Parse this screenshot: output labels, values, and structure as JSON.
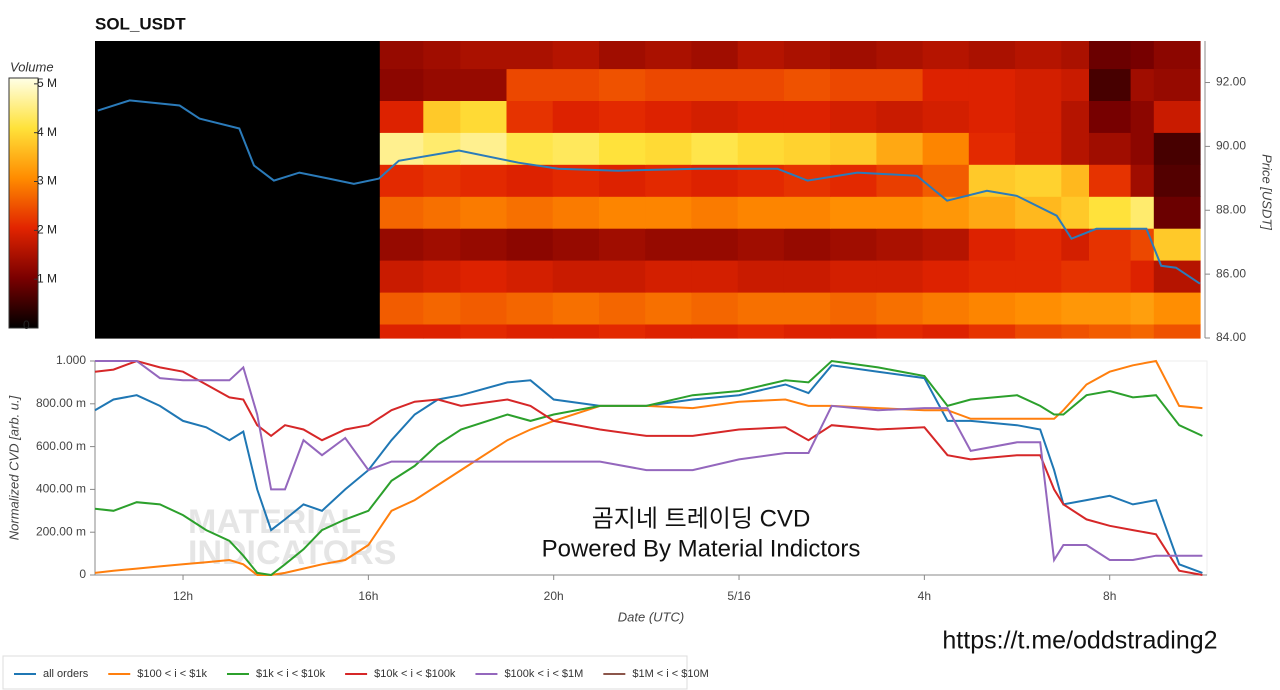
{
  "title": "SOL_USDT",
  "url": "https://t.me/oddstrading2",
  "chart_data": [
    {
      "type": "heatmap",
      "colorbar_label": "Volume",
      "y_label": "Price [USDT]",
      "x_bins": [
        10.1,
        16.26,
        17.2,
        18.0,
        19.0,
        20.0,
        21.0,
        22.0,
        23.0,
        24.0,
        25.0,
        26.0,
        27.0,
        28.0,
        29.0,
        30.0,
        31.0,
        31.6,
        32.5,
        33.0,
        34.0
      ],
      "y_bins": [
        84,
        84.44,
        85.44,
        86.44,
        87.44,
        88.44,
        89.44,
        90.44,
        91.44,
        92.44,
        93.3
      ],
      "z": [
        [
          0,
          2000000.0,
          2000000.0,
          2100000.0,
          2000000.0,
          2000000.0,
          2100000.0,
          2000000.0,
          2000000.0,
          2100000.0,
          2000000.0,
          2000000.0,
          2100000.0,
          2000000.0,
          2200000.0,
          2400000.0,
          2500000.0,
          2600000.0,
          2700000.0,
          2500000.0
        ],
        [
          0,
          2600000.0,
          2700000.0,
          2600000.0,
          2700000.0,
          2800000.0,
          2700000.0,
          2800000.0,
          2700000.0,
          2800000.0,
          2800000.0,
          2700000.0,
          2800000.0,
          2900000.0,
          3000000.0,
          3100000.0,
          3200000.0,
          3200000.0,
          3300000.0,
          3100000.0
        ],
        [
          0,
          1800000.0,
          1900000.0,
          2000000.0,
          1900000.0,
          1800000.0,
          1800000.0,
          1900000.0,
          1900000.0,
          1800000.0,
          1800000.0,
          1900000.0,
          1900000.0,
          2000000.0,
          2100000.0,
          2100000.0,
          2200000.0,
          2200000.0,
          2000000.0,
          1600000.0
        ],
        [
          0,
          1300000.0,
          1400000.0,
          1300000.0,
          1200000.0,
          1300000.0,
          1400000.0,
          1300000.0,
          1300000.0,
          1400000.0,
          1300000.0,
          1400000.0,
          1500000.0,
          1600000.0,
          2000000.0,
          2100000.0,
          1900000.0,
          2200000.0,
          2400000.0,
          3800000.0
        ],
        [
          0,
          2700000.0,
          2800000.0,
          2900000.0,
          2800000.0,
          2900000.0,
          3000000.0,
          3000000.0,
          2900000.0,
          3000000.0,
          3000000.0,
          3100000.0,
          3100000.0,
          3200000.0,
          3400000.0,
          3600000.0,
          3800000.0,
          4100000.0,
          4400000.0,
          900000.0
        ],
        [
          0,
          2100000.0,
          2200000.0,
          2100000.0,
          2000000.0,
          2100000.0,
          2000000.0,
          2100000.0,
          2000000.0,
          2100000.0,
          2200000.0,
          2100000.0,
          2300000.0,
          2600000.0,
          3800000.0,
          3900000.0,
          3600000.0,
          2200000.0,
          1400000.0,
          700000.0
        ],
        [
          0,
          4600000.0,
          4400000.0,
          4600000.0,
          4200000.0,
          4300000.0,
          4100000.0,
          4000000.0,
          4200000.0,
          4000000.0,
          3900000.0,
          3800000.0,
          3400000.0,
          3000000.0,
          2100000.0,
          1900000.0,
          1600000.0,
          1400000.0,
          1200000.0,
          600000.0
        ],
        [
          0,
          2000000.0,
          3800000.0,
          4000000.0,
          2200000.0,
          2000000.0,
          2100000.0,
          2000000.0,
          1900000.0,
          2000000.0,
          2000000.0,
          1900000.0,
          1800000.0,
          1900000.0,
          2000000.0,
          1900000.0,
          1600000.0,
          1000000.0,
          1200000.0,
          1800000.0
        ],
        [
          0,
          1200000.0,
          1300000.0,
          1300000.0,
          2400000.0,
          2400000.0,
          2500000.0,
          2400000.0,
          2400000.0,
          2400000.0,
          2500000.0,
          2400000.0,
          2400000.0,
          2000000.0,
          2000000.0,
          1900000.0,
          1800000.0,
          600000.0,
          1400000.0,
          1300000.0
        ],
        [
          0,
          1300000.0,
          1400000.0,
          1500000.0,
          1500000.0,
          1600000.0,
          1400000.0,
          1500000.0,
          1400000.0,
          1600000.0,
          1500000.0,
          1400000.0,
          1500000.0,
          1600000.0,
          1500000.0,
          1600000.0,
          1500000.0,
          900000.0,
          1000000.0,
          1200000.0
        ]
      ],
      "zlim": [
        0,
        5120000
      ],
      "zticks": [
        0,
        {
          "value": 1000000,
          "label": "1 M"
        },
        {
          "value": 2000000,
          "label": "2 M"
        },
        {
          "value": 3000000,
          "label": "3 M"
        },
        {
          "value": 4000000,
          "label": "4 M"
        },
        {
          "value": 5000000,
          "label": "5 M"
        }
      ],
      "colorscale": [
        "#000000",
        "#7a0000",
        "#e22400",
        "#ff8c00",
        "#ffe23a",
        "#ffffe6"
      ],
      "xlim": [
        10.1,
        34.0
      ],
      "ylim": [
        84,
        93.3
      ],
      "yticks": [
        {
          "value": 84,
          "label": "84.00"
        },
        {
          "value": 86,
          "label": "86.00"
        },
        {
          "value": 88,
          "label": "88.00"
        },
        {
          "value": 90,
          "label": "90.00"
        },
        {
          "value": 92,
          "label": "92.00"
        }
      ],
      "line": {
        "color": "#2b7bba",
        "x": [
          10.16,
          10.85,
          11.93,
          12.36,
          13.22,
          13.54,
          13.97,
          14.52,
          15.16,
          15.7,
          16.24,
          16.67,
          17.97,
          19.26,
          20.12,
          21.41,
          23.14,
          24.86,
          25.51,
          26.59,
          27.88,
          28.53,
          29.39,
          30.04,
          30.9,
          31.22,
          31.76,
          32.84,
          33.16,
          33.48,
          34.0
        ],
        "values": [
          91.12,
          91.44,
          91.28,
          90.87,
          90.56,
          89.4,
          88.93,
          89.18,
          88.99,
          88.83,
          88.99,
          89.55,
          89.87,
          89.49,
          89.3,
          89.24,
          89.3,
          89.3,
          88.93,
          89.18,
          89.08,
          88.3,
          88.61,
          88.45,
          87.83,
          87.11,
          87.42,
          87.42,
          86.26,
          86.2,
          85.7
        ]
      }
    },
    {
      "type": "line",
      "x_label": "Date (UTC)",
      "y_label": "Normalized CVD [arb. u.]",
      "annotations": [
        "곰지네 트레이딩 CVD",
        "Powered By Material Indictors"
      ],
      "watermark": [
        "MATERIAL",
        "INDICATORS"
      ],
      "legend": "bottom",
      "xlim": [
        10.1,
        34.1
      ],
      "xticks": [
        {
          "value": 12,
          "label": "12h"
        },
        {
          "value": 16,
          "label": "16h"
        },
        {
          "value": 20,
          "label": "20h"
        },
        {
          "value": 24,
          "label": "5/16"
        },
        {
          "value": 28,
          "label": "4h"
        },
        {
          "value": 32,
          "label": "8h"
        }
      ],
      "ylim": [
        0,
        1
      ],
      "yticks": [
        0,
        {
          "value": 0.2,
          "label": "200.00 m"
        },
        {
          "value": 0.4,
          "label": "400.00 m"
        },
        {
          "value": 0.6,
          "label": "600.00 m"
        },
        {
          "value": 0.8,
          "label": "800.00 m"
        },
        {
          "value": 1,
          "label": "1.000"
        }
      ],
      "x": [
        10.1,
        10.5,
        11,
        11.5,
        12,
        12.5,
        13,
        13.3,
        13.6,
        13.9,
        14.2,
        14.6,
        15,
        15.5,
        16,
        16.5,
        17,
        17.5,
        18,
        19,
        19.5,
        20,
        21,
        22,
        23,
        24,
        25,
        25.5,
        26,
        27,
        28,
        28.5,
        29,
        30,
        30.5,
        30.8,
        31,
        31.5,
        32,
        32.5,
        33,
        33.5,
        34
      ],
      "series": [
        {
          "name": "all orders",
          "color": "#1f77b4",
          "values": [
            0.77,
            0.82,
            0.84,
            0.79,
            0.72,
            0.69,
            0.63,
            0.67,
            0.4,
            0.21,
            0.26,
            0.33,
            0.3,
            0.4,
            0.49,
            0.63,
            0.75,
            0.82,
            0.84,
            0.9,
            0.91,
            0.82,
            0.79,
            0.79,
            0.82,
            0.84,
            0.89,
            0.85,
            0.98,
            0.95,
            0.92,
            0.72,
            0.72,
            0.7,
            0.68,
            0.49,
            0.33,
            0.35,
            0.37,
            0.33,
            0.35,
            0.05,
            0.01
          ]
        },
        {
          "name": "$100 < i < $1k",
          "color": "#ff7f0e",
          "values": [
            0.01,
            0.02,
            0.03,
            0.04,
            0.05,
            0.06,
            0.07,
            0.05,
            0,
            0,
            0.01,
            0.03,
            0.05,
            0.07,
            0.14,
            0.3,
            0.35,
            0.42,
            0.49,
            0.63,
            0.68,
            0.72,
            0.79,
            0.79,
            0.78,
            0.81,
            0.82,
            0.79,
            0.79,
            0.78,
            0.77,
            0.77,
            0.73,
            0.73,
            0.73,
            0.73,
            0.77,
            0.89,
            0.95,
            0.98,
            1.0,
            0.79,
            0.78
          ]
        },
        {
          "name": "$1k < i < $10k",
          "color": "#2ca02c",
          "values": [
            0.31,
            0.3,
            0.34,
            0.33,
            0.28,
            0.21,
            0.16,
            0.09,
            0.01,
            0,
            0.05,
            0.12,
            0.21,
            0.26,
            0.3,
            0.44,
            0.51,
            0.61,
            0.68,
            0.75,
            0.72,
            0.75,
            0.79,
            0.79,
            0.84,
            0.86,
            0.91,
            0.9,
            1.0,
            0.97,
            0.93,
            0.79,
            0.82,
            0.84,
            0.79,
            0.75,
            0.75,
            0.84,
            0.86,
            0.83,
            0.84,
            0.7,
            0.65
          ]
        },
        {
          "name": "$10k < i < $100k",
          "color": "#d62728",
          "values": [
            0.95,
            0.96,
            1.0,
            0.97,
            0.95,
            0.89,
            0.83,
            0.82,
            0.7,
            0.65,
            0.7,
            0.68,
            0.63,
            0.68,
            0.7,
            0.77,
            0.81,
            0.82,
            0.79,
            0.82,
            0.79,
            0.72,
            0.68,
            0.65,
            0.65,
            0.68,
            0.69,
            0.63,
            0.7,
            0.68,
            0.69,
            0.56,
            0.54,
            0.56,
            0.56,
            0.4,
            0.33,
            0.26,
            0.23,
            0.21,
            0.19,
            0.02,
            0
          ]
        },
        {
          "name": "$100k < i < $1M",
          "color": "#9467bd",
          "values": [
            1.0,
            1.0,
            1.0,
            0.92,
            0.91,
            0.91,
            0.91,
            0.97,
            0.75,
            0.4,
            0.4,
            0.63,
            0.56,
            0.64,
            0.49,
            0.53,
            0.53,
            0.53,
            0.53,
            0.53,
            0.53,
            0.53,
            0.53,
            0.49,
            0.49,
            0.54,
            0.57,
            0.57,
            0.79,
            0.77,
            0.78,
            0.78,
            0.58,
            0.62,
            0.62,
            0.07,
            0.14,
            0.14,
            0.07,
            0.07,
            0.09,
            0.09,
            0.09
          ]
        },
        {
          "name": "$1M < i < $10M",
          "color": "#8c564b",
          "values": [
            null,
            null,
            null,
            null,
            null,
            null,
            null,
            null,
            null,
            null,
            null,
            null,
            null,
            null,
            null,
            null,
            null,
            null,
            null,
            null,
            null,
            null,
            null,
            null,
            null,
            null,
            null,
            null,
            null,
            null,
            null,
            null,
            null,
            null,
            null,
            null,
            null,
            null,
            null,
            null,
            null,
            null,
            null
          ]
        }
      ]
    }
  ]
}
